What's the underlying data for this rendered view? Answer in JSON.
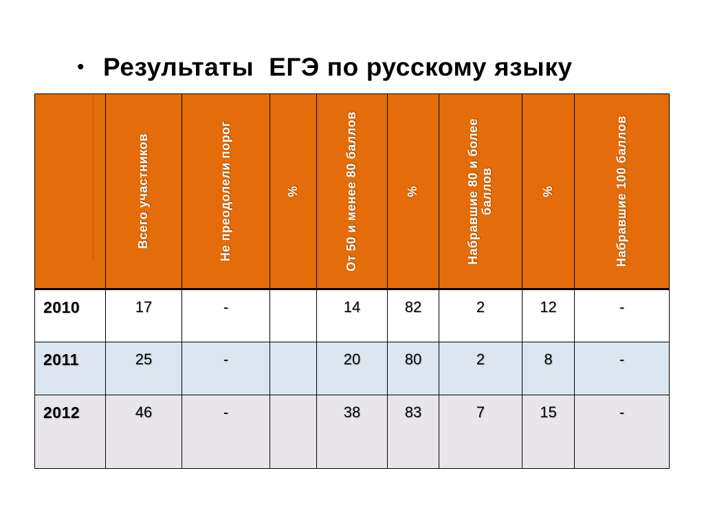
{
  "slide": {
    "bullet": "•",
    "title": "Результаты  ЕГЭ по русскому языку"
  },
  "table": {
    "headers": [
      "",
      "Всего участников",
      "Не преодолели порог",
      "%",
      "От 50 и менее 80 баллов",
      "%",
      "Набравшие 80 и более баллов",
      "%",
      "Набравшие 100 баллов"
    ],
    "rows": [
      {
        "year": "2010",
        "cells": [
          "17",
          "-",
          "",
          "14",
          "82",
          "2",
          "12",
          "-"
        ]
      },
      {
        "year": "2011",
        "cells": [
          "25",
          "-",
          "",
          "20",
          "80",
          "2",
          "8",
          "-"
        ]
      },
      {
        "year": "2012",
        "cells": [
          "46",
          "-",
          "",
          "38",
          "83",
          "7",
          "15",
          "-"
        ]
      }
    ]
  },
  "colors": {
    "header_bg": "#e46c0a",
    "header_text": "#ffffff",
    "row_2011_bg": "#dce6f0",
    "row_2012_bg": "#e8e6ea"
  }
}
